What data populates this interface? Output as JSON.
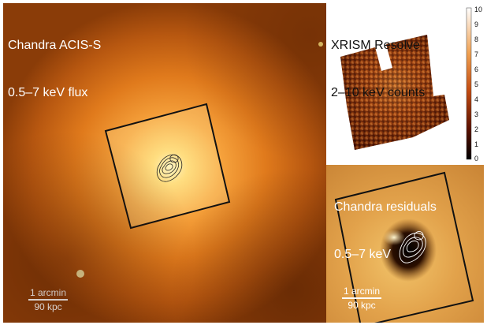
{
  "main_panel": {
    "title_line1": "Chandra ACIS-S",
    "title_line2": "0.5–7 keV flux",
    "scalebar_top": "1 arcmin",
    "scalebar_bottom": "90 kpc"
  },
  "xrism_panel": {
    "title_line1": "XRISM Resolve",
    "title_line2": "2–10 keV counts",
    "colorbar_ticks": [
      "10",
      "9",
      "8",
      "7",
      "6",
      "5",
      "4",
      "3",
      "2",
      "1",
      "0"
    ]
  },
  "residual_panel": {
    "title_line1": "Chandra residuals",
    "title_line2": "0.5–7 keV",
    "scalebar_top": "1 arcmin",
    "scalebar_bottom": "90 kpc"
  },
  "colors": {
    "frame": "#111111",
    "contour_dark": "#222222",
    "contour_light": "#ffffff"
  },
  "icons": [
    "scale-bar",
    "fov-square",
    "contours"
  ]
}
